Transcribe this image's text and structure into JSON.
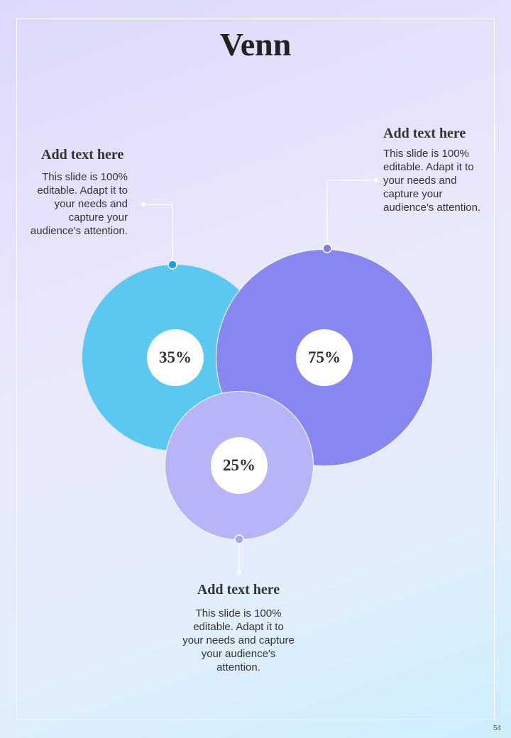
{
  "title": "Venn",
  "page_number": "54",
  "circles": [
    {
      "value": "35%",
      "color": "#5bc8f2"
    },
    {
      "value": "75%",
      "color": "#8887f2"
    },
    {
      "value": "25%",
      "color": "#b7b5f7"
    }
  ],
  "callouts": [
    {
      "heading": "Add text here",
      "body": "This slide is 100% editable. Adapt it to your needs and capture your audience's attention."
    },
    {
      "heading": "Add text here",
      "body": "This slide is 100% editable. Adapt it to your needs and capture your audience's attention."
    },
    {
      "heading": "Add text here",
      "body": "This slide is 100% editable. Adapt it to your needs and capture your audience's attention."
    }
  ],
  "colors": {
    "dot_left": "#1aa3dd",
    "dot_right": "#7f7ee6",
    "dot_bottom": "#a9a6ef"
  }
}
